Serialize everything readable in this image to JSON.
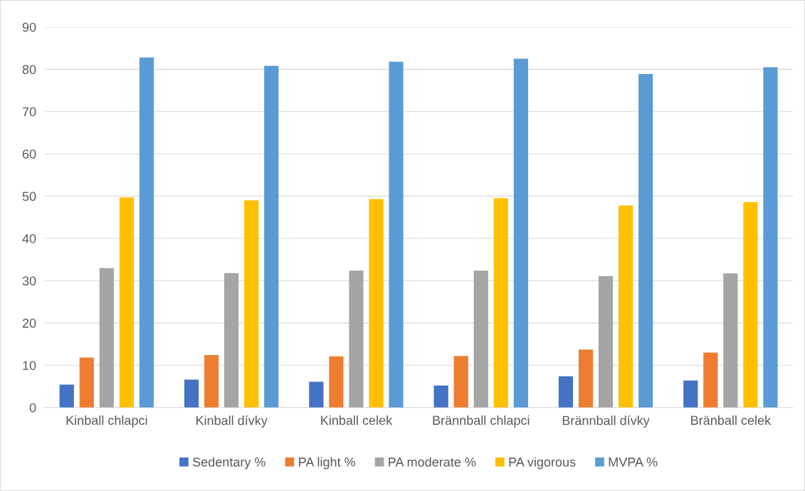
{
  "chart_data": {
    "type": "bar",
    "categories": [
      "Kinball chlapci",
      "Kinball dívky",
      "Kinball celek",
      "Brännball chlapci",
      "Brännball dívky",
      "Bränball celek"
    ],
    "series": [
      {
        "name": "Sedentary %",
        "color": "#4472c4",
        "values": [
          5.4,
          6.6,
          6.1,
          5.2,
          7.4,
          6.4
        ]
      },
      {
        "name": "PA light %",
        "color": "#ed7d31",
        "values": [
          11.8,
          12.4,
          12.1,
          12.2,
          13.7,
          13.0
        ]
      },
      {
        "name": "PA moderate %",
        "color": "#a5a5a5",
        "values": [
          33.0,
          31.8,
          32.4,
          32.4,
          31.1,
          31.7
        ]
      },
      {
        "name": "PA vigorous",
        "color": "#ffc000",
        "values": [
          49.7,
          49.0,
          49.3,
          49.5,
          47.8,
          48.6
        ]
      },
      {
        "name": "MVPA %",
        "color": "#5b9bd5",
        "values": [
          82.8,
          80.8,
          81.8,
          82.5,
          78.9,
          80.5
        ]
      }
    ],
    "ylim": [
      0,
      90
    ],
    "yticks": [
      0,
      10,
      20,
      30,
      40,
      50,
      60,
      70,
      80,
      90
    ],
    "grid": "y",
    "legend": "bottom"
  }
}
